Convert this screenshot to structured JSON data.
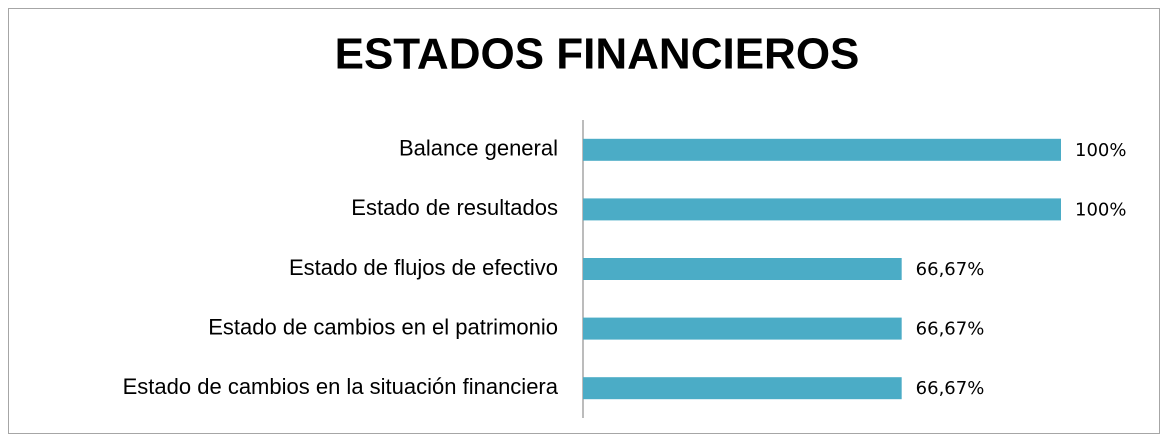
{
  "chart_data": {
    "type": "bar",
    "orientation": "horizontal",
    "title": "ESTADOS FINANCIEROS",
    "categories": [
      "Balance general",
      "Estado de resultados",
      "Estado de flujos de efectivo",
      "Estado de cambios en el patrimonio",
      "Estado de cambios en la situación financiera"
    ],
    "values": [
      100,
      100,
      66.67,
      66.67,
      66.67
    ],
    "value_labels": [
      "100%",
      "100%",
      "66,67%",
      "66,67%",
      "66,67%"
    ],
    "color": "#4bacc6"
  }
}
